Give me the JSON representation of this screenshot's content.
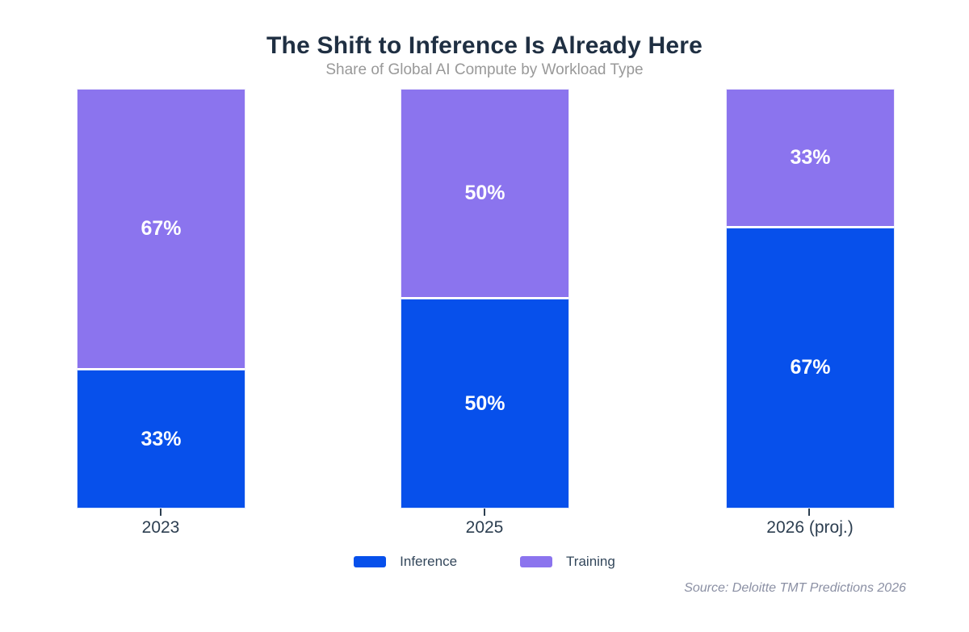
{
  "header": {
    "title": "The Shift to Inference Is Already Here",
    "subtitle": "Share of Global AI Compute by Workload Type"
  },
  "colors": {
    "inference": "#0750EB",
    "training": "#8B74EE",
    "title_text": "#1F2F42",
    "subtitle_text": "#999999",
    "axis_text": "#2C3E50",
    "source_text": "#8B90A4",
    "background": "#FFFFFF",
    "bar_value_text": "#FFFFFF"
  },
  "legend": {
    "items": [
      {
        "label": "Inference",
        "color": "#0750EB"
      },
      {
        "label": "Training",
        "color": "#8B74EE"
      }
    ]
  },
  "source_note": "Source: Deloitte TMT Predictions 2026",
  "chart_data": {
    "type": "bar",
    "stacked": true,
    "title": "The Shift to Inference Is Already Here",
    "subtitle": "Share of Global AI Compute by Workload Type",
    "categories": [
      "2023",
      "2025",
      "2026 (proj.)"
    ],
    "series": [
      {
        "name": "Inference",
        "color": "#0750EB",
        "values": [
          33,
          50,
          67
        ]
      },
      {
        "name": "Training",
        "color": "#8B74EE",
        "values": [
          67,
          50,
          33
        ]
      }
    ],
    "unit": "%",
    "ylim": [
      0,
      100
    ],
    "grid": false,
    "y_axis_visible": false,
    "legend_position": "bottom",
    "bars": [
      {
        "category": "2023",
        "inference_pct": 33,
        "training_pct": 67,
        "inference_label": "33%",
        "training_label": "67%"
      },
      {
        "category": "2025",
        "inference_pct": 50,
        "training_pct": 50,
        "inference_label": "50%",
        "training_label": "50%"
      },
      {
        "category": "2026 (proj.)",
        "inference_pct": 67,
        "training_pct": 33,
        "inference_label": "67%",
        "training_label": "33%"
      }
    ]
  }
}
